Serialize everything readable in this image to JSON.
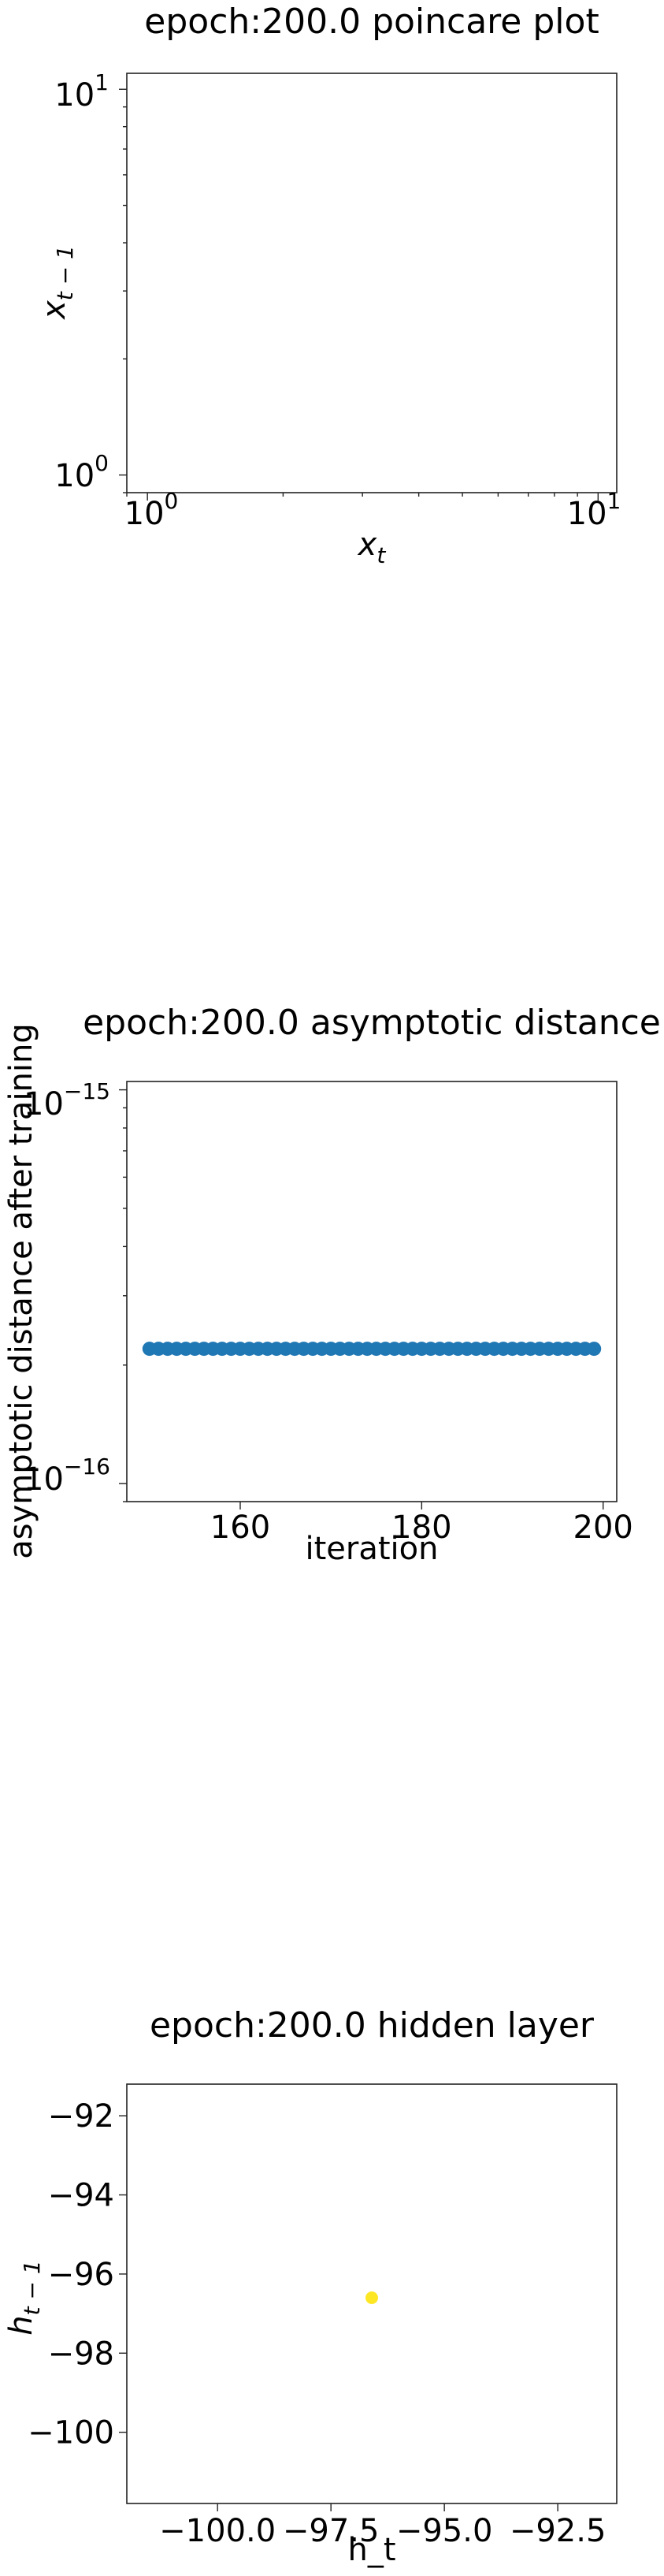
{
  "chart_data": [
    {
      "type": "scatter",
      "title": "epoch:200.0 poincare plot",
      "xlabel_main": "x",
      "xlabel_sub": "t",
      "ylabel_main": "x",
      "ylabel_sub": "t − 1",
      "xscale": "log",
      "yscale": "log",
      "xlim": [
        0.9,
        11
      ],
      "ylim": [
        0.9,
        11
      ],
      "xticks": [
        {
          "base": "10",
          "exp": "0"
        },
        {
          "base": "10",
          "exp": "1"
        }
      ],
      "yticks": [
        {
          "base": "10",
          "exp": "0"
        },
        {
          "base": "10",
          "exp": "1"
        }
      ],
      "points": [],
      "grid": false,
      "legend": "none"
    },
    {
      "type": "scatter",
      "title": "epoch:200.0 asymptotic distance",
      "xlabel": "iteration",
      "ylabel": "asymptotic distance after training",
      "yscale": "log",
      "xlim": [
        147.5,
        201.5
      ],
      "ylim": [
        9e-17,
        1.05e-15
      ],
      "xticks": [
        "160",
        "180",
        "200"
      ],
      "yticks": [
        {
          "base": "10",
          "exp": "−15"
        },
        {
          "base": "10",
          "exp": "−16"
        }
      ],
      "x_start": 150,
      "x_end": 199,
      "y_value": 2.2e-16,
      "color": "#1f77b4",
      "grid": false,
      "legend": "none"
    },
    {
      "type": "scatter",
      "title": "epoch:200.0 hidden layer",
      "xlabel": "h_t",
      "ylabel_main": "h",
      "ylabel_sub": "t − 1",
      "xlim": [
        -102,
        -91.2
      ],
      "ylim": [
        -101.8,
        -91.2
      ],
      "xticks": [
        "−100.0",
        "−97.5",
        "−95.0",
        "−92.5"
      ],
      "yticks": [
        "−92",
        "−94",
        "−96",
        "−98",
        "−100"
      ],
      "points": [
        {
          "x": -96.6,
          "y": -96.6
        }
      ],
      "color": "#fde725",
      "grid": false,
      "legend": "none"
    }
  ]
}
